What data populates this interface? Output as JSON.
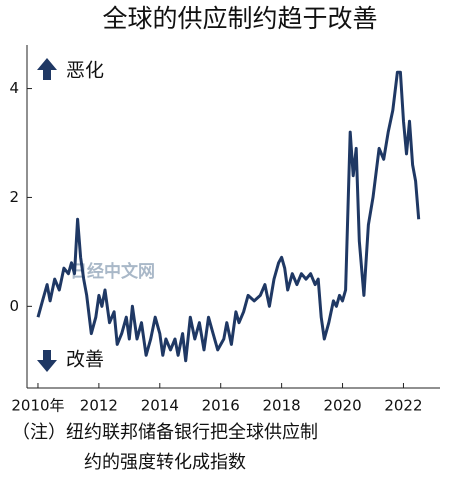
{
  "chart_data": {
    "type": "line",
    "title": "全球的供应制约趋于改善",
    "annotations": [
      "恶化",
      "改善"
    ],
    "note": [
      "（注）纽约联邦储备银行把全球供应制",
      "约的强度转化成指数"
    ],
    "watermark": "日经中文网",
    "color": "#1f3864",
    "x": [
      2010.0,
      2010.15,
      2010.3,
      2010.4,
      2010.55,
      2010.7,
      2010.85,
      2011.0,
      2011.1,
      2011.2,
      2011.3,
      2011.4,
      2011.5,
      2011.6,
      2011.75,
      2011.9,
      2012.0,
      2012.1,
      2012.2,
      2012.35,
      2012.5,
      2012.6,
      2012.75,
      2012.9,
      2013.0,
      2013.1,
      2013.25,
      2013.4,
      2013.55,
      2013.7,
      2013.85,
      2014.0,
      2014.1,
      2014.2,
      2014.35,
      2014.5,
      2014.6,
      2014.75,
      2014.85,
      2015.0,
      2015.15,
      2015.3,
      2015.45,
      2015.6,
      2015.75,
      2015.9,
      2016.1,
      2016.2,
      2016.35,
      2016.5,
      2016.6,
      2016.75,
      2016.9,
      2017.1,
      2017.3,
      2017.45,
      2017.6,
      2017.75,
      2017.9,
      2018.0,
      2018.1,
      2018.2,
      2018.35,
      2018.5,
      2018.65,
      2018.8,
      2018.95,
      2019.1,
      2019.2,
      2019.3,
      2019.4,
      2019.55,
      2019.7,
      2019.8,
      2019.9,
      2020.0,
      2020.1,
      2020.25,
      2020.35,
      2020.45,
      2020.55,
      2020.7,
      2020.85,
      2021.0,
      2021.2,
      2021.35,
      2021.5,
      2021.65,
      2021.8,
      2021.9,
      2022.0,
      2022.1,
      2022.2,
      2022.3,
      2022.4,
      2022.5
    ],
    "values": [
      -0.2,
      0.1,
      0.4,
      0.1,
      0.5,
      0.3,
      0.7,
      0.6,
      0.8,
      0.6,
      1.6,
      0.9,
      0.5,
      0.2,
      -0.5,
      -0.2,
      0.2,
      0.0,
      0.3,
      -0.3,
      -0.1,
      -0.7,
      -0.5,
      -0.2,
      -0.6,
      0.0,
      -0.6,
      -0.3,
      -0.9,
      -0.6,
      -0.2,
      -0.5,
      -0.9,
      -0.6,
      -0.8,
      -0.6,
      -0.9,
      -0.5,
      -1.0,
      -0.2,
      -0.6,
      -0.3,
      -0.8,
      -0.2,
      -0.5,
      -0.8,
      -0.6,
      -0.3,
      -0.7,
      -0.1,
      -0.3,
      -0.1,
      0.2,
      0.1,
      0.2,
      0.4,
      0.0,
      0.5,
      0.8,
      0.9,
      0.7,
      0.3,
      0.6,
      0.4,
      0.6,
      0.5,
      0.6,
      0.4,
      0.5,
      -0.2,
      -0.6,
      -0.3,
      0.1,
      0.0,
      0.2,
      0.1,
      0.3,
      3.2,
      2.4,
      2.9,
      1.2,
      0.2,
      1.5,
      2.0,
      2.9,
      2.7,
      3.2,
      3.6,
      4.3,
      4.3,
      3.4,
      2.8,
      3.4,
      2.6,
      2.3,
      1.6
    ],
    "xlim": [
      2009.64,
      2023.2
    ],
    "ylim": [
      -1.5,
      4.8
    ],
    "xticks": [
      {
        "value": 2010,
        "label": "2010年"
      },
      2012,
      2014,
      2016,
      2018,
      2020,
      2022
    ],
    "yticks": [
      0,
      2,
      4
    ]
  }
}
